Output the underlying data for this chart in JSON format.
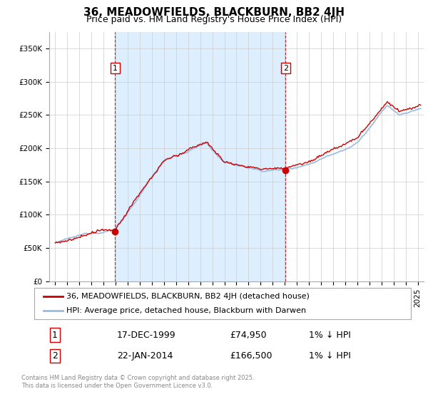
{
  "title": "36, MEADOWFIELDS, BLACKBURN, BB2 4JH",
  "subtitle": "Price paid vs. HM Land Registry's House Price Index (HPI)",
  "ylabel_ticks": [
    0,
    50000,
    100000,
    150000,
    200000,
    250000,
    300000,
    350000
  ],
  "ylabel_labels": [
    "£0",
    "£50K",
    "£100K",
    "£150K",
    "£200K",
    "£250K",
    "£300K",
    "£350K"
  ],
  "ylim": [
    0,
    375000
  ],
  "xlim_start": 1994.5,
  "xlim_end": 2025.5,
  "line_color_property": "#cc0000",
  "line_color_hpi": "#99bbdd",
  "sale1_x": 1999.96,
  "sale1_y": 74950,
  "sale2_x": 2014.06,
  "sale2_y": 166500,
  "sale_marker_color": "#cc0000",
  "vline_color": "#cc0000",
  "shade_color": "#ddeeff",
  "legend_label1": "36, MEADOWFIELDS, BLACKBURN, BB2 4JH (detached house)",
  "legend_label2": "HPI: Average price, detached house, Blackburn with Darwen",
  "footnote": "Contains HM Land Registry data © Crown copyright and database right 2025.\nThis data is licensed under the Open Government Licence v3.0.",
  "table_row1": [
    "1",
    "17-DEC-1999",
    "£74,950",
    "1% ↓ HPI"
  ],
  "table_row2": [
    "2",
    "22-JAN-2014",
    "£166,500",
    "1% ↓ HPI"
  ],
  "background_color": "#ffffff",
  "grid_color": "#cccccc",
  "title_fontsize": 11,
  "subtitle_fontsize": 9,
  "tick_fontsize": 7.5,
  "legend_fontsize": 8
}
